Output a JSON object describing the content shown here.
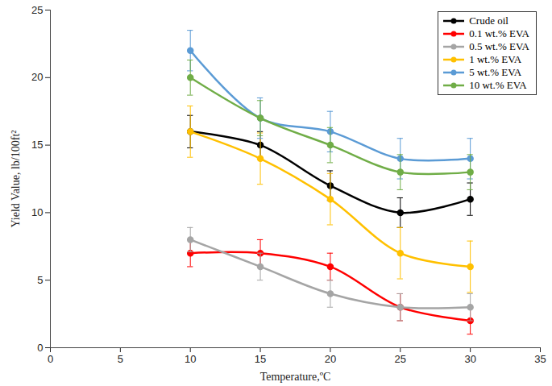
{
  "chart_data": {
    "type": "line",
    "x_label": "Temperature,ºC",
    "y_label": "Yield Value, lb/100ft²",
    "x": [
      10,
      15,
      20,
      25,
      30
    ],
    "xlim": [
      0,
      35
    ],
    "xticks": [
      0,
      5,
      10,
      15,
      20,
      25,
      30,
      35
    ],
    "ylim": [
      0,
      25
    ],
    "yticks": [
      0,
      5,
      10,
      15,
      20,
      25
    ],
    "grid": false,
    "legend": "top-right",
    "marker": "circle",
    "line_style": "solid",
    "series": [
      {
        "name": "Crude oil",
        "color": "#000000",
        "values": [
          16,
          15,
          12,
          10,
          11
        ],
        "errors": [
          1.2,
          1.0,
          1.1,
          1.1,
          1.2
        ]
      },
      {
        "name": "0.1 wt.% EVA",
        "color": "#ff0000",
        "values": [
          7,
          7,
          6,
          3,
          2
        ],
        "errors": [
          1.0,
          1.0,
          1.0,
          1.0,
          1.0
        ]
      },
      {
        "name": "0.5 wt.% EVA",
        "color": "#a5a5a5",
        "values": [
          8,
          6,
          4,
          3,
          3
        ],
        "errors": [
          0.9,
          1.0,
          1.0,
          1.0,
          1.0
        ]
      },
      {
        "name": "1 wt.% EVA",
        "color": "#ffc000",
        "values": [
          16,
          14,
          11,
          7,
          6
        ],
        "errors": [
          1.9,
          1.9,
          1.9,
          1.9,
          1.9
        ]
      },
      {
        "name": "5 wt.% EVA",
        "color": "#5b9bd5",
        "values": [
          22,
          17,
          16,
          14,
          14
        ],
        "errors": [
          1.5,
          1.5,
          1.5,
          1.5,
          1.5
        ]
      },
      {
        "name": "10 wt.% EVA",
        "color": "#70ad47",
        "values": [
          20,
          17,
          15,
          13,
          13
        ],
        "errors": [
          1.3,
          1.3,
          1.3,
          1.3,
          1.3
        ]
      }
    ]
  }
}
